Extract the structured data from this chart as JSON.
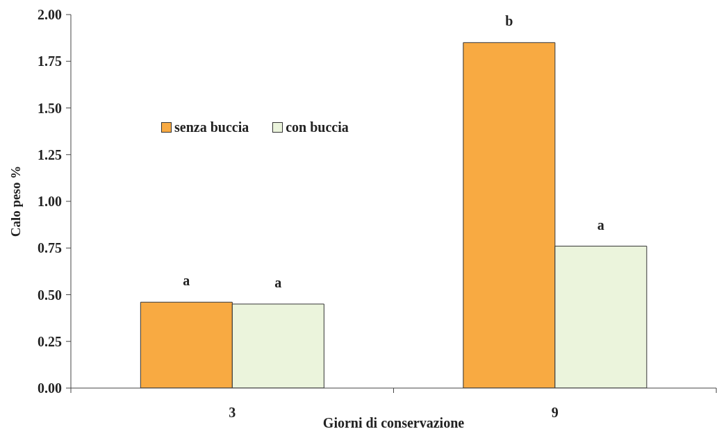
{
  "chart_data": {
    "type": "bar",
    "xlabel": "Giorni di conservazione",
    "ylabel": "Calo peso %",
    "categories": [
      "3",
      "9"
    ],
    "series": [
      {
        "name": "senza buccia",
        "color": "#f8aa42",
        "values": [
          0.46,
          1.85
        ],
        "value_labels": [
          "a",
          "b"
        ]
      },
      {
        "name": "con buccia",
        "color": "#ebf4dc",
        "values": [
          0.45,
          0.76
        ],
        "value_labels": [
          "a",
          "a"
        ]
      }
    ],
    "ylim": [
      0,
      2
    ],
    "yticks": [
      {
        "value": 0,
        "label": "0.00"
      },
      {
        "value": 0.25,
        "label": "0.25"
      },
      {
        "value": 0.5,
        "label": "0.50"
      },
      {
        "value": 0.75,
        "label": "0.75"
      },
      {
        "value": 1,
        "label": "1.00"
      },
      {
        "value": 1.25,
        "label": "1.25"
      },
      {
        "value": 1.5,
        "label": "1.50"
      },
      {
        "value": 1.75,
        "label": "1.75"
      },
      {
        "value": 2,
        "label": "2.00"
      }
    ],
    "grid": false,
    "legend": "top left"
  }
}
